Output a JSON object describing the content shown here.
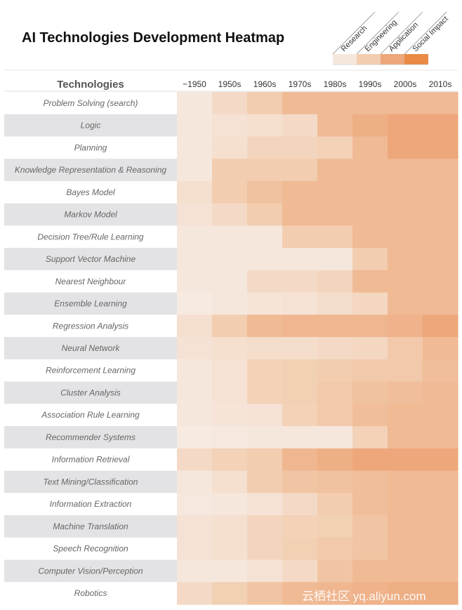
{
  "title": "AI Technologies Development Heatmap",
  "legend": {
    "items": [
      {
        "label": "Research",
        "color": "#F6E7DD"
      },
      {
        "label": "Engineering",
        "color": "#F2CDAF"
      },
      {
        "label": "Application",
        "color": "#EDA77A"
      },
      {
        "label": "Social Impact",
        "color": "#E98A45"
      }
    ]
  },
  "row_header": "Technologies",
  "watermark": "云栖社区 yq.aliyun.com",
  "chart_data": {
    "type": "heatmap",
    "title": "AI Technologies Development Heatmap",
    "x": [
      "~1950",
      "1950s",
      "1960s",
      "1970s",
      "1980s",
      "1990s",
      "2000s",
      "2010s"
    ],
    "y": [
      "Problem Solving (search)",
      "Logic",
      "Planning",
      "Knowledge Representation & Reasoning",
      "Bayes Model",
      "Markov Model",
      "Decision Tree/Rule Learning",
      "Support Vector Machine",
      "Nearest Neighbour",
      "Ensemble Learning",
      "Regression Analysis",
      "Neural Network",
      "Reinforcement Learning",
      "Cluster Analysis",
      "Association Rule Learning",
      "Recommender Systems",
      "Information Retrieval",
      "Text Mining/Classification",
      "Information Extraction",
      "Machine Translation",
      "Speech Recognition",
      "Computer Vision/Perception",
      "Robotics"
    ],
    "scale": [
      "Research",
      "Engineering",
      "Application",
      "Social Impact"
    ],
    "values": [
      [
        1.0,
        1.5,
        2.0,
        2.5,
        2.5,
        2.5,
        2.5,
        2.5
      ],
      [
        1.0,
        1.2,
        1.3,
        1.5,
        2.5,
        2.8,
        3.0,
        3.2
      ],
      [
        1.0,
        1.3,
        1.7,
        1.7,
        1.8,
        2.5,
        3.0,
        3.0
      ],
      [
        1.0,
        2.0,
        2.0,
        2.0,
        2.5,
        2.5,
        2.5,
        2.5
      ],
      [
        1.3,
        2.0,
        2.3,
        2.5,
        2.5,
        2.5,
        2.5,
        2.5
      ],
      [
        1.2,
        1.5,
        2.0,
        2.5,
        2.5,
        2.5,
        2.5,
        2.5
      ],
      [
        1.0,
        1.0,
        1.0,
        2.0,
        2.0,
        2.5,
        2.5,
        2.5
      ],
      [
        1.0,
        1.0,
        1.0,
        1.0,
        1.0,
        2.0,
        2.5,
        2.5
      ],
      [
        1.0,
        1.0,
        1.5,
        1.5,
        1.7,
        2.5,
        2.5,
        2.5
      ],
      [
        0.8,
        1.0,
        1.1,
        1.2,
        1.4,
        1.6,
        2.5,
        2.5
      ],
      [
        1.3,
        2.0,
        2.5,
        2.6,
        2.6,
        2.6,
        2.7,
        3.0
      ],
      [
        1.2,
        1.3,
        1.4,
        1.4,
        1.5,
        1.6,
        2.1,
        2.5
      ],
      [
        1.0,
        1.2,
        1.8,
        1.9,
        2.0,
        2.1,
        2.1,
        2.4
      ],
      [
        1.0,
        1.2,
        1.8,
        1.9,
        2.1,
        2.3,
        2.4,
        2.5
      ],
      [
        1.0,
        1.1,
        1.2,
        1.8,
        2.1,
        2.4,
        2.5,
        2.5
      ],
      [
        0.8,
        0.9,
        1.0,
        1.0,
        1.0,
        1.8,
        2.5,
        2.5
      ],
      [
        1.5,
        1.8,
        2.0,
        2.6,
        2.8,
        3.0,
        3.1,
        3.1
      ],
      [
        1.0,
        1.3,
        2.0,
        2.2,
        2.3,
        2.4,
        2.5,
        2.5
      ],
      [
        0.9,
        1.0,
        1.2,
        1.5,
        2.0,
        2.4,
        2.5,
        2.5
      ],
      [
        1.2,
        1.3,
        1.7,
        1.8,
        1.9,
        2.2,
        2.5,
        2.5
      ],
      [
        1.2,
        1.3,
        1.7,
        1.9,
        2.1,
        2.2,
        2.5,
        2.5
      ],
      [
        1.0,
        1.0,
        1.2,
        1.5,
        2.2,
        2.5,
        2.5,
        2.5
      ],
      [
        1.5,
        1.9,
        2.2,
        2.5,
        2.6,
        2.7,
        2.8,
        2.8
      ]
    ],
    "grid": false,
    "legend": "top-right"
  }
}
